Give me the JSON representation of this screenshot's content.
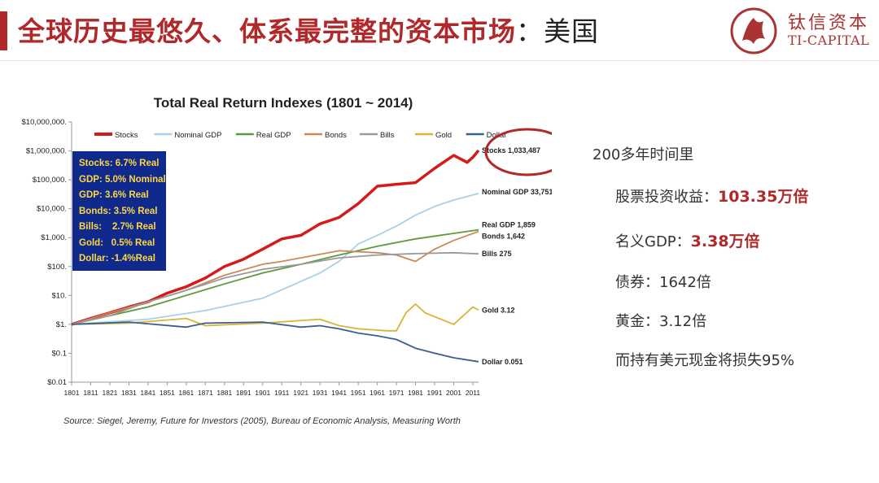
{
  "header": {
    "title": "全球历史最悠久、体系最完整的资本市场",
    "title_tail": "：美国",
    "logo_cn": "钛信资本",
    "logo_en": "TI-CAPITAL"
  },
  "summary": {
    "items": [
      {
        "text": "200多年时间里",
        "highlight": ""
      },
      {
        "text": "股票投资收益：",
        "highlight": "103.35万倍"
      },
      {
        "text": "名义GDP：",
        "highlight": "3.38万倍"
      },
      {
        "text": "债券：1642倍",
        "highlight": ""
      },
      {
        "text": "黄金：3.12倍",
        "highlight": ""
      },
      {
        "text": "而持有美元现金将损失95%",
        "highlight": ""
      }
    ]
  },
  "stats_box": [
    "Stocks: 6.7% Real",
    "GDP: 5.0% Nominal",
    "GDP: 3.6% Real",
    "Bonds: 3.5% Real",
    "Bills:    2.7% Real",
    "Gold:   0.5% Real",
    "Dollar: -1.4%Real"
  ],
  "source": "Source: Siegel, Jeremy, Future for Investors (2005), Bureau of Economic Analysis, Measuring Worth",
  "chart_data": {
    "type": "line",
    "title": "Total Real Return Indexes (1801 ~ 2014)",
    "y_scale": "log",
    "ylim": [
      0.01,
      10000000
    ],
    "y_ticks": [
      "$10,000,000.",
      "$1,000,000.",
      "$100,000.",
      "$10,000.",
      "$1,000.",
      "$100.",
      "$10.",
      "$1.",
      "$0.1",
      "$0.01"
    ],
    "x_ticks": [
      "1801",
      "1811",
      "1821",
      "1831",
      "1841",
      "1851",
      "1861",
      "1871",
      "1881",
      "1891",
      "1901",
      "1911",
      "1921",
      "1931",
      "1941",
      "1951",
      "1961",
      "1971",
      "1981",
      "1991",
      "2001",
      "2011"
    ],
    "xlim": [
      1801,
      2014
    ],
    "colors": {
      "Stocks": "#d41a1a",
      "Nominal GDP": "#a9d0e8",
      "Real GDP": "#5a9a3a",
      "Bonds": "#c98a5a",
      "Bills": "#9a9a9a",
      "Gold": "#d9b43a",
      "Dollar": "#3a5f8c"
    },
    "series": [
      {
        "name": "Stocks",
        "x": [
          1801,
          1811,
          1821,
          1831,
          1841,
          1851,
          1861,
          1871,
          1881,
          1891,
          1901,
          1911,
          1921,
          1931,
          1941,
          1951,
          1961,
          1971,
          1981,
          1991,
          2001,
          2008,
          2011,
          2014
        ],
        "values": [
          1,
          1.6,
          2.5,
          4,
          6,
          12,
          20,
          40,
          100,
          180,
          400,
          900,
          1200,
          3000,
          5000,
          15000,
          60000,
          70000,
          80000,
          250000,
          700000,
          400000,
          600000,
          1033487
        ]
      },
      {
        "name": "Nominal GDP",
        "x": [
          1801,
          1841,
          1871,
          1901,
          1931,
          1941,
          1951,
          1961,
          1971,
          1981,
          1991,
          2001,
          2014
        ],
        "values": [
          1,
          1.5,
          3,
          8,
          60,
          150,
          600,
          1200,
          2500,
          6000,
          12000,
          20000,
          33751
        ]
      },
      {
        "name": "Real GDP",
        "x": [
          1801,
          1821,
          1841,
          1861,
          1881,
          1901,
          1921,
          1941,
          1961,
          1981,
          2001,
          2014
        ],
        "values": [
          1,
          2,
          4,
          10,
          25,
          60,
          120,
          250,
          500,
          900,
          1400,
          1859
        ]
      },
      {
        "name": "Bonds",
        "x": [
          1801,
          1821,
          1841,
          1861,
          1881,
          1901,
          1911,
          1921,
          1941,
          1961,
          1971,
          1981,
          1991,
          2001,
          2014
        ],
        "values": [
          1,
          2.5,
          6,
          15,
          50,
          120,
          150,
          200,
          350,
          300,
          250,
          150,
          400,
          800,
          1642
        ]
      },
      {
        "name": "Bills",
        "x": [
          1801,
          1821,
          1841,
          1861,
          1881,
          1901,
          1921,
          1941,
          1961,
          1981,
          2001,
          2014
        ],
        "values": [
          1,
          2,
          6,
          15,
          40,
          80,
          120,
          200,
          250,
          280,
          300,
          275
        ]
      },
      {
        "name": "Gold",
        "x": [
          1801,
          1831,
          1861,
          1871,
          1901,
          1931,
          1941,
          1951,
          1966,
          1971,
          1976,
          1981,
          1986,
          2001,
          2011,
          2014
        ],
        "values": [
          1,
          1.1,
          1.6,
          0.9,
          1.1,
          1.5,
          0.9,
          0.7,
          0.6,
          0.6,
          2.5,
          5,
          2.5,
          1,
          4,
          3.12
        ]
      },
      {
        "name": "Dollar",
        "x": [
          1801,
          1831,
          1861,
          1871,
          1901,
          1921,
          1931,
          1941,
          1951,
          1961,
          1971,
          1981,
          1991,
          2001,
          2014
        ],
        "values": [
          1,
          1.2,
          0.8,
          1.1,
          1.2,
          0.8,
          0.9,
          0.7,
          0.5,
          0.4,
          0.3,
          0.15,
          0.1,
          0.07,
          0.051
        ]
      }
    ],
    "end_labels": [
      {
        "series": "Stocks",
        "text": "Stocks 1,033,487"
      },
      {
        "series": "Nominal GDP",
        "text": "Nominal GDP 33,751"
      },
      {
        "series": "Real GDP",
        "text": "Real GDP 1,859"
      },
      {
        "series": "Bonds",
        "text": "Bonds 1,642"
      },
      {
        "series": "Bills",
        "text": "Bills 275"
      },
      {
        "series": "Gold",
        "text": "Gold 3.12"
      },
      {
        "series": "Dollar",
        "text": "Dollar 0.051"
      }
    ],
    "legend_placement": "top",
    "grid": false
  }
}
